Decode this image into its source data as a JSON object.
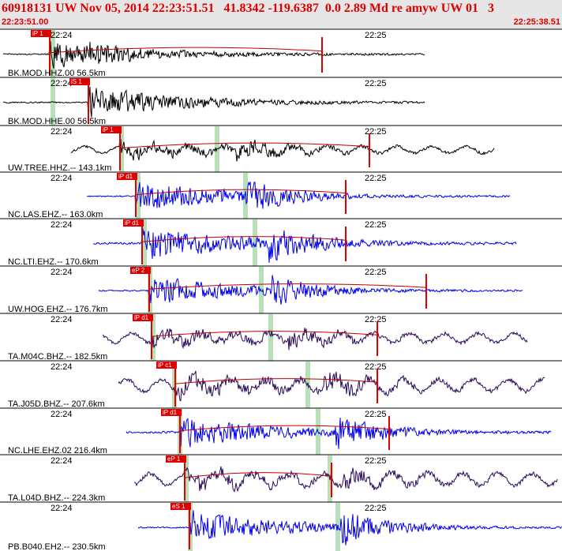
{
  "header": {
    "title": "60918131 UW Nov 05, 2014 22:23:51.51   41.8342 -119.6387  0.0 2.89 Md re amyw UW 01   3",
    "time_start": "22:23:51.00",
    "time_end": "22:25:38.51"
  },
  "time_ticks": [
    "22:24",
    "22:25"
  ],
  "colors": {
    "header_bg": "#e6e6e6",
    "accent": "#e00000",
    "pick_window": "#b8e0b8",
    "blue_trace": "#0000ee",
    "purple_trace": "#2a0a5a",
    "black_trace": "#000000"
  },
  "traces": [
    {
      "label": "BK.MOD.HHZ.00 56.5km",
      "pick": "iP 1",
      "color": "black"
    },
    {
      "label": "BK.MOD.HHE.00 56.5km",
      "pick": "iS 1",
      "color": "black"
    },
    {
      "label": "UW.TREE.HHZ.-- 143.1km",
      "pick": "iP 1",
      "color": "black"
    },
    {
      "label": "NC.LAS.EHZ.-- 163.0km",
      "pick": "iP d1",
      "color": "blue"
    },
    {
      "label": "NC.LTI.EHZ.-- 170.6km",
      "pick": "iP d1",
      "color": "blue"
    },
    {
      "label": "UW.HOG.EHZ.-- 176.7km",
      "pick": "eP 2",
      "color": "blue"
    },
    {
      "label": "TA.M04C.BHZ.-- 182.5km",
      "pick": "iP d1",
      "color": "purple"
    },
    {
      "label": "TA.J05D.BHZ.-- 207.6km",
      "pick": "iP c1",
      "color": "purple"
    },
    {
      "label": "NC.LHE.EHZ.02 216.4km",
      "pick": "iP d1",
      "color": "blue"
    },
    {
      "label": "TA.L04D.BHZ.-- 224.3km",
      "pick": "eP 1",
      "color": "purple"
    },
    {
      "label": "PB.B040.EH2.-- 230.5km",
      "pick": "eS 1",
      "color": "blue"
    }
  ]
}
